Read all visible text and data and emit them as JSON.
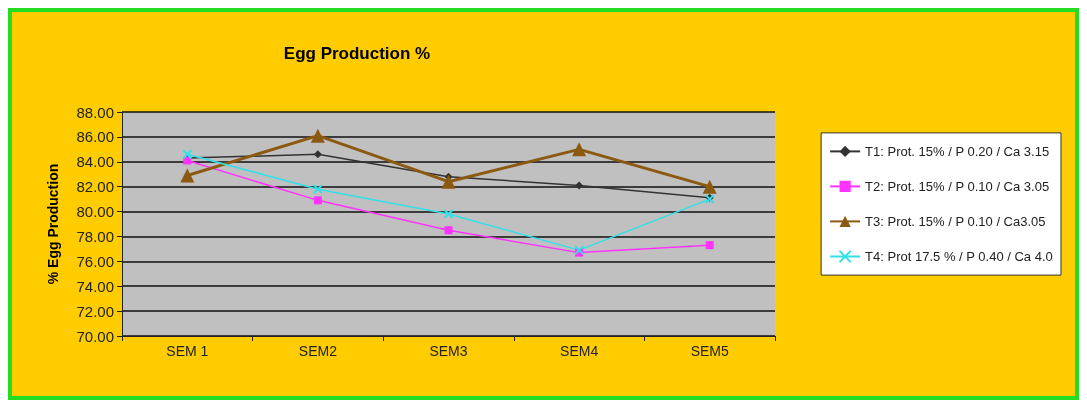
{
  "chart_data": {
    "type": "line",
    "title": "Egg Production %",
    "ylabel": "% Egg Production",
    "categories": [
      "SEM 1",
      "SEM2",
      "SEM3",
      "SEM4",
      "SEM5"
    ],
    "series": [
      {
        "name": "T1: Prot. 15% / P 0.20 / Ca 3.15",
        "color": "#333333",
        "marker": "diamond",
        "values": [
          84.3,
          84.6,
          82.8,
          82.1,
          81.1
        ]
      },
      {
        "name": "T2: Prot. 15% / P 0.10 / Ca 3.05",
        "color": "#ff33ff",
        "marker": "square",
        "values": [
          84.1,
          80.9,
          78.5,
          76.7,
          77.3
        ]
      },
      {
        "name": "T3: Prot. 15% / P 0.10 / Ca3.05",
        "color": "#8b5a10",
        "marker": "triangle",
        "values": [
          82.9,
          86.1,
          82.4,
          85.0,
          82.0
        ]
      },
      {
        "name": "T4: Prot 17.5 % / P 0.40 / Ca 4.0",
        "color": "#33e0e8",
        "marker": "cross",
        "values": [
          84.6,
          81.8,
          79.8,
          76.9,
          81.0
        ]
      }
    ],
    "ylim": [
      70,
      88
    ],
    "yticks": [
      {
        "value": 70,
        "label": "70.00"
      },
      {
        "value": 72,
        "label": "72.00"
      },
      {
        "value": 74,
        "label": "74.00"
      },
      {
        "value": 76,
        "label": "76.00"
      },
      {
        "value": 78,
        "label": "78.00"
      },
      {
        "value": 80,
        "label": "80.00"
      },
      {
        "value": 82,
        "label": "82.00"
      },
      {
        "value": 84,
        "label": "84.00"
      },
      {
        "value": 86,
        "label": "86.00"
      },
      {
        "value": 88,
        "label": "88.00"
      }
    ],
    "grid": "y",
    "legend": "right"
  }
}
